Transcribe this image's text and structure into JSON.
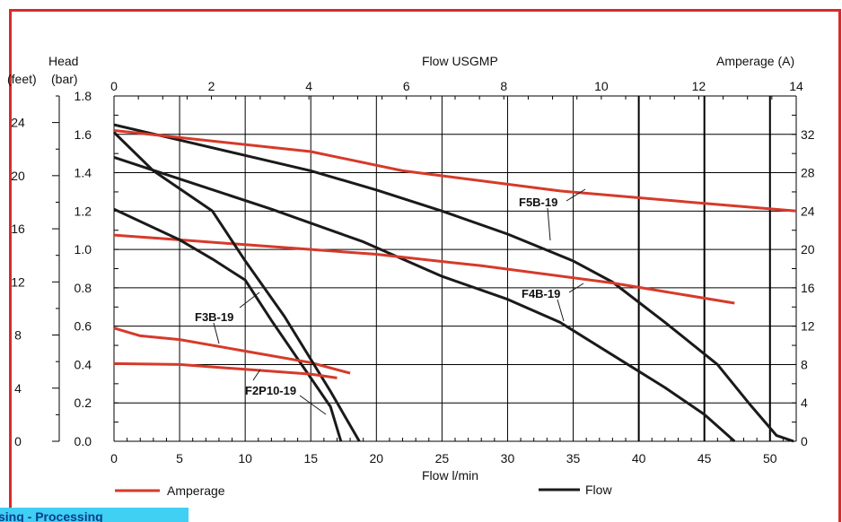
{
  "colors": {
    "border": "#d62b2b",
    "amperage": "#d63a2a",
    "flow": "#1a1a1a",
    "grid": "#000000",
    "banner": "#3fd0f3",
    "banner_text": "#0b3d8f"
  },
  "banner": {
    "text": "sing - Processing"
  },
  "chart_data": {
    "type": "line",
    "axes": {
      "x_bottom": {
        "label": "Flow l/min",
        "range": [
          0,
          52
        ],
        "ticks": [
          0,
          5,
          10,
          15,
          20,
          25,
          30,
          35,
          40,
          45,
          50
        ]
      },
      "x_top": {
        "label": "Flow USGMP",
        "range": [
          0,
          14
        ],
        "ticks": [
          0,
          2,
          4,
          6,
          8,
          10,
          12,
          14
        ]
      },
      "y_left_bar": {
        "label": "(bar)",
        "range": [
          0,
          1.8
        ],
        "ticks": [
          "0.0",
          "0.2",
          "0.4",
          "0.6",
          "0.8",
          "1.0",
          "1.2",
          "1.4",
          "1.6",
          "1.8"
        ]
      },
      "y_left_feet": {
        "label": "(feet)",
        "range": [
          0,
          26
        ],
        "ticks": [
          0,
          4,
          8,
          12,
          16,
          20,
          24
        ]
      },
      "y_right_amp": {
        "label": "Amperage (A)",
        "range": [
          0,
          36
        ],
        "ticks": [
          0,
          4,
          8,
          12,
          16,
          20,
          24,
          28,
          32
        ]
      },
      "y_left_title": "Head",
      "grid": true
    },
    "legend": {
      "position": "bottom",
      "items": [
        {
          "label": "Amperage",
          "color": "#d63a2a"
        },
        {
          "label": "Flow",
          "color": "#1a1a1a"
        }
      ]
    },
    "model_labels": [
      "F5B-19",
      "F4B-19",
      "F3B-19",
      "F2P10-19"
    ],
    "series": [
      {
        "name": "F5B-19",
        "kind": "flow",
        "points": [
          [
            0,
            1.65
          ],
          [
            5,
            1.57
          ],
          [
            10,
            1.49
          ],
          [
            15,
            1.41
          ],
          [
            20,
            1.31
          ],
          [
            25,
            1.2
          ],
          [
            30,
            1.08
          ],
          [
            35,
            0.94
          ],
          [
            38,
            0.83
          ],
          [
            42,
            0.62
          ],
          [
            46,
            0.4
          ],
          [
            48.5,
            0.19
          ],
          [
            50.5,
            0.03
          ],
          [
            51.8,
            0.0
          ]
        ]
      },
      {
        "name": "F5B-19",
        "kind": "amperage",
        "points": [
          [
            0,
            32.4
          ],
          [
            15,
            30.2
          ],
          [
            22,
            28.2
          ],
          [
            34,
            26.1
          ],
          [
            45,
            24.8
          ],
          [
            52,
            24.0
          ]
        ]
      },
      {
        "name": "F4B-19",
        "kind": "flow",
        "points": [
          [
            0,
            1.48
          ],
          [
            4,
            1.39
          ],
          [
            12,
            1.21
          ],
          [
            19,
            1.04
          ],
          [
            25,
            0.86
          ],
          [
            30,
            0.74
          ],
          [
            34,
            0.62
          ],
          [
            38,
            0.45
          ],
          [
            42,
            0.28
          ],
          [
            45,
            0.14
          ],
          [
            47.3,
            0.0
          ]
        ]
      },
      {
        "name": "F4B-19",
        "kind": "amperage",
        "points": [
          [
            0,
            21.5
          ],
          [
            5,
            21.0
          ],
          [
            10,
            20.5
          ],
          [
            20,
            19.5
          ],
          [
            28,
            18.3
          ],
          [
            38,
            16.5
          ],
          [
            47.3,
            14.4
          ]
        ]
      },
      {
        "name": "F3B-19",
        "kind": "flow",
        "points": [
          [
            0,
            1.21
          ],
          [
            5,
            1.05
          ],
          [
            7.5,
            0.95
          ],
          [
            10,
            0.84
          ],
          [
            12,
            0.63
          ],
          [
            14.5,
            0.38
          ],
          [
            16.5,
            0.18
          ],
          [
            17.3,
            0.0
          ]
        ]
      },
      {
        "name": "F3B-19",
        "kind": "amperage",
        "points": [
          [
            0,
            11.8
          ],
          [
            2,
            11.0
          ],
          [
            5,
            10.6
          ],
          [
            10,
            9.4
          ],
          [
            15,
            8.2
          ],
          [
            18,
            7.1
          ]
        ]
      },
      {
        "name": "F2P10-19",
        "kind": "flow",
        "points": [
          [
            0,
            1.61
          ],
          [
            3,
            1.41
          ],
          [
            7.5,
            1.2
          ],
          [
            10,
            0.94
          ],
          [
            13,
            0.65
          ],
          [
            16.5,
            0.26
          ],
          [
            18.7,
            0.0
          ]
        ]
      },
      {
        "name": "F2P10-19",
        "kind": "amperage",
        "points": [
          [
            0,
            8.1
          ],
          [
            5,
            8.0
          ],
          [
            10,
            7.5
          ],
          [
            15,
            7.0
          ],
          [
            17,
            6.6
          ]
        ]
      }
    ]
  }
}
